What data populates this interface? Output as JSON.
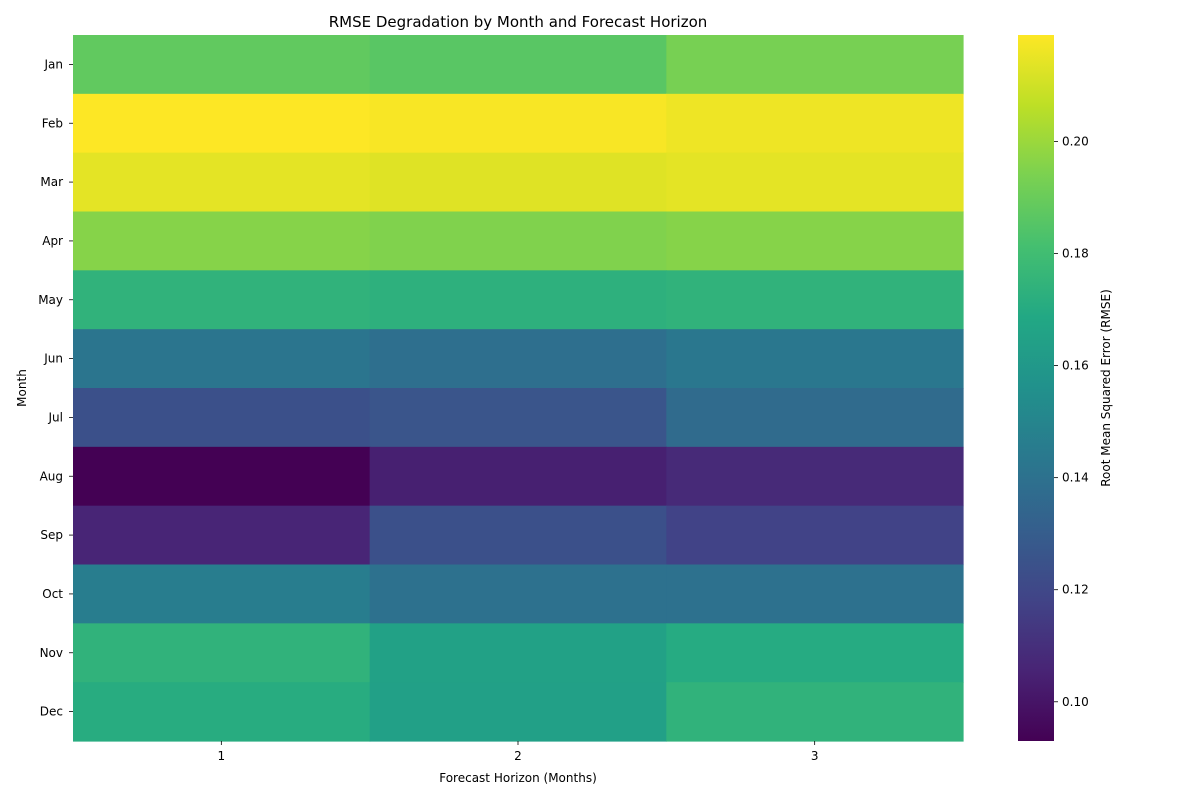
{
  "chart_data": {
    "type": "heatmap",
    "title": "RMSE Degradation by Month and Forecast Horizon",
    "xlabel": "Forecast Horizon (Months)",
    "ylabel": "Month",
    "x_categories": [
      "1",
      "2",
      "3"
    ],
    "y_categories": [
      "Jan",
      "Feb",
      "Mar",
      "Apr",
      "May",
      "Jun",
      "Jul",
      "Aug",
      "Sep",
      "Oct",
      "Nov",
      "Dec"
    ],
    "values": [
      [
        0.188,
        0.186,
        0.193
      ],
      [
        0.219,
        0.218,
        0.216
      ],
      [
        0.214,
        0.213,
        0.214
      ],
      [
        0.196,
        0.195,
        0.196
      ],
      [
        0.174,
        0.173,
        0.174
      ],
      [
        0.142,
        0.139,
        0.143
      ],
      [
        0.124,
        0.126,
        0.137
      ],
      [
        0.093,
        0.104,
        0.108
      ],
      [
        0.106,
        0.124,
        0.118
      ],
      [
        0.146,
        0.14,
        0.14
      ],
      [
        0.174,
        0.165,
        0.17
      ],
      [
        0.171,
        0.164,
        0.174
      ]
    ],
    "colormap": "viridis",
    "color_range": [
      0.093,
      0.219
    ],
    "colorbar": {
      "label": "Root Mean Squared Error (RMSE)",
      "ticks": [
        0.1,
        0.12,
        0.14,
        0.16,
        0.18,
        0.2
      ],
      "tick_labels": [
        "0.10",
        "0.12",
        "0.14",
        "0.16",
        "0.18",
        "0.20"
      ]
    },
    "grid": false
  }
}
